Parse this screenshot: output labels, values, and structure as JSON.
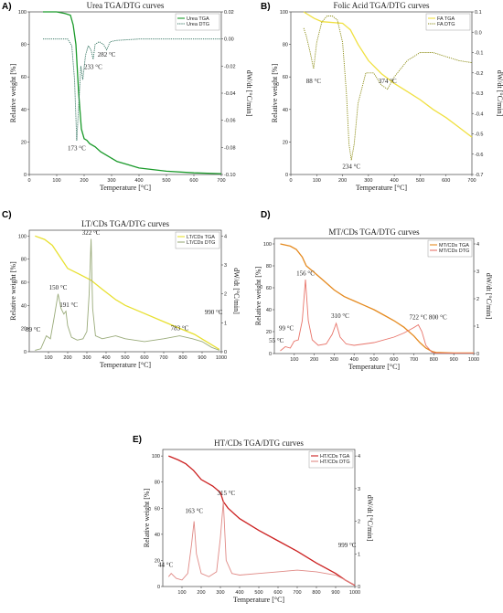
{
  "chart_data": [
    {
      "panel": "A)",
      "type": "line",
      "title": "Urea TGA/DTG curves",
      "xlabel": "Temperature [°C]",
      "ylabel": "Relative weight [%]",
      "y2label": "dW/dt [°C/min]",
      "xlim": [
        0,
        700
      ],
      "ylim": [
        0,
        100
      ],
      "y2lim": [
        -0.1,
        0.02
      ],
      "xticks": [
        0,
        100,
        200,
        300,
        400,
        500,
        600,
        700
      ],
      "yticks": [
        0,
        20,
        40,
        60,
        80,
        100
      ],
      "y2ticks": [
        -0.1,
        -0.08,
        -0.06,
        -0.04,
        -0.02,
        0.0,
        0.02
      ],
      "y2tick_labels": [
        "-0.10",
        "-0.08",
        "-0.06",
        "-0.04",
        "-0.02",
        "0.00",
        "0.02"
      ],
      "legend_position": "top-right",
      "series": [
        {
          "name": "Urea TGA",
          "axis": "left",
          "color": "#1a9a2a",
          "style": "solid",
          "x": [
            50,
            100,
            130,
            150,
            160,
            170,
            175,
            180,
            190,
            200,
            210,
            220,
            240,
            260,
            290,
            320,
            360,
            400,
            500,
            600,
            700
          ],
          "y": [
            100,
            100,
            99,
            98,
            92,
            80,
            65,
            50,
            28,
            22,
            21,
            19,
            17,
            14,
            11,
            8,
            6,
            4,
            2,
            1,
            0.5
          ]
        },
        {
          "name": "Urea DTG",
          "axis": "right",
          "color": "#2a6e5a",
          "style": "dotted",
          "x": [
            50,
            100,
            140,
            155,
            165,
            173,
            180,
            188,
            195,
            205,
            215,
            225,
            233,
            240,
            255,
            270,
            282,
            295,
            320,
            400,
            500,
            600,
            700
          ],
          "y": [
            0.0,
            0.0,
            0.0,
            -0.005,
            -0.03,
            -0.075,
            -0.05,
            -0.02,
            -0.03,
            -0.012,
            -0.005,
            -0.008,
            -0.015,
            -0.004,
            -0.002,
            -0.004,
            -0.008,
            -0.002,
            -0.001,
            0.0,
            0.0,
            0.0,
            0.0
          ]
        }
      ],
      "annotations": [
        {
          "text": "173 °C",
          "x": 173,
          "y2": -0.082
        },
        {
          "text": "233 °C",
          "x": 233,
          "y2": -0.022
        },
        {
          "text": "282 °C",
          "x": 282,
          "y2": -0.013
        }
      ]
    },
    {
      "panel": "B)",
      "type": "line",
      "title": "Folic Acid TGA/DTG curves",
      "xlabel": "Temperature [°C]",
      "ylabel": "Relative weight [%]",
      "y2label": "dW/dt [°C/min]",
      "xlim": [
        0,
        700
      ],
      "ylim": [
        0,
        100
      ],
      "y2lim": [
        -0.7,
        0.1
      ],
      "xticks": [
        0,
        100,
        200,
        300,
        400,
        500,
        600,
        700
      ],
      "yticks": [
        0,
        20,
        40,
        60,
        80,
        100
      ],
      "y2ticks": [
        -0.7,
        -0.6,
        -0.5,
        -0.4,
        -0.3,
        -0.2,
        -0.1,
        0.0,
        0.1
      ],
      "y2tick_labels": [
        "-0.7",
        "-0.6",
        "-0.5",
        "-0.4",
        "-0.3",
        "-0.2",
        "-0.1",
        "0.0",
        "0.1"
      ],
      "legend_position": "top-right",
      "series": [
        {
          "name": "FA TGA",
          "axis": "left",
          "color": "#f0e040",
          "style": "solid",
          "x": [
            50,
            90,
            120,
            200,
            230,
            260,
            300,
            350,
            400,
            450,
            500,
            550,
            600,
            650,
            700
          ],
          "y": [
            100,
            96,
            94,
            93,
            89,
            80,
            70,
            62,
            56,
            51,
            46,
            40,
            35,
            29,
            23
          ]
        },
        {
          "name": "FA DTG",
          "axis": "right",
          "color": "#8a8a10",
          "style": "dotted",
          "x": [
            50,
            60,
            75,
            88,
            100,
            120,
            140,
            160,
            180,
            200,
            215,
            225,
            234,
            245,
            260,
            290,
            320,
            350,
            374,
            400,
            450,
            500,
            550,
            600,
            650,
            700
          ],
          "y": [
            0.02,
            -0.02,
            -0.1,
            -0.18,
            -0.05,
            0.05,
            0.08,
            0.08,
            0.06,
            -0.05,
            -0.3,
            -0.55,
            -0.63,
            -0.55,
            -0.35,
            -0.2,
            -0.2,
            -0.26,
            -0.28,
            -0.22,
            -0.14,
            -0.1,
            -0.1,
            -0.12,
            -0.14,
            -0.15
          ]
        }
      ],
      "annotations": [
        {
          "text": "88 °C",
          "x": 88,
          "y2": -0.25
        },
        {
          "text": "234 °C",
          "x": 234,
          "y2": -0.67
        },
        {
          "text": "374 °C",
          "x": 374,
          "y2": -0.25
        }
      ]
    },
    {
      "panel": "C)",
      "type": "line",
      "title": "LT/CDs TGA/DTG curves",
      "xlabel": "Temperature [°C]",
      "ylabel": "Relative weight [%]",
      "y2label": "dW/dt [°C/min]",
      "xlim": [
        0,
        1000
      ],
      "ylim": [
        0,
        105
      ],
      "y2lim": [
        0,
        4.2
      ],
      "xticks": [
        100,
        200,
        300,
        400,
        500,
        600,
        700,
        800,
        900,
        1000
      ],
      "yticks": [
        0,
        20,
        40,
        60,
        80,
        100
      ],
      "y2ticks": [
        0,
        1,
        2,
        3,
        4
      ],
      "y2tick_labels": [
        "0",
        "1",
        "2",
        "3",
        "4"
      ],
      "legend_position": "top-right",
      "series": [
        {
          "name": "LT/CDs TGA",
          "axis": "left",
          "color": "#e8e030",
          "style": "solid",
          "x": [
            30,
            80,
            120,
            160,
            200,
            260,
            320,
            380,
            450,
            500,
            600,
            700,
            800,
            860,
            900,
            950,
            990
          ],
          "y": [
            100,
            97,
            92,
            82,
            72,
            67,
            62,
            54,
            45,
            40,
            33,
            26,
            19,
            15,
            11,
            6,
            2
          ]
        },
        {
          "name": "LT/CDs DTG",
          "axis": "right",
          "color": "#9aab7a",
          "style": "solid",
          "x": [
            30,
            60,
            89,
            110,
            130,
            150,
            165,
            180,
            191,
            200,
            220,
            250,
            280,
            300,
            312,
            322,
            330,
            345,
            380,
            450,
            500,
            600,
            700,
            783,
            850,
            900,
            950,
            990
          ],
          "y": [
            0.05,
            0.1,
            0.55,
            0.45,
            1.2,
            2.0,
            1.5,
            1.3,
            1.4,
            0.9,
            0.5,
            0.4,
            0.45,
            0.7,
            2.0,
            3.9,
            1.5,
            0.55,
            0.45,
            0.55,
            0.45,
            0.35,
            0.45,
            0.55,
            0.45,
            0.35,
            0.15,
            0.05
          ]
        }
      ],
      "annotations": [
        {
          "text": "89 °C",
          "x": 20,
          "y2": 0.7
        },
        {
          "text": "150 °C",
          "x": 150,
          "y2": 2.15
        },
        {
          "text": "191 °C",
          "x": 205,
          "y2": 1.55
        },
        {
          "text": "322 °C",
          "x": 322,
          "y2": 4.05
        },
        {
          "text": "783 °C",
          "x": 783,
          "y2": 0.75
        },
        {
          "text": "990 °C",
          "x": 960,
          "y2": 1.3,
          "color": "#c8b400"
        }
      ]
    },
    {
      "panel": "D)",
      "type": "line",
      "title": "MT/CDs TGA/DTG curves",
      "xlabel": "Temperature [°C]",
      "ylabel": "Relative weight [%]",
      "y2label": "dW/dt [°C/min]",
      "xlim": [
        0,
        1000
      ],
      "ylim": [
        0,
        105
      ],
      "y2lim": [
        0,
        4.2
      ],
      "xticks": [
        100,
        200,
        300,
        400,
        500,
        600,
        700,
        800,
        900,
        1000
      ],
      "yticks": [
        0,
        20,
        40,
        60,
        80,
        100
      ],
      "y2ticks": [
        0,
        1,
        2,
        3,
        4
      ],
      "y2tick_labels": [
        "0",
        "1",
        "2",
        "3",
        "4"
      ],
      "legend_position": "top-right",
      "series": [
        {
          "name": "MT/CDs TGA",
          "axis": "left",
          "color": "#e58a1f",
          "style": "solid",
          "x": [
            30,
            80,
            110,
            140,
            160,
            200,
            250,
            300,
            350,
            400,
            450,
            500,
            550,
            600,
            650,
            700,
            730,
            760,
            790,
            810,
            900,
            1000
          ],
          "y": [
            100,
            98,
            95,
            88,
            80,
            74,
            66,
            58,
            52,
            48,
            44,
            40,
            35,
            30,
            24,
            16,
            10,
            5,
            2,
            1,
            0.5,
            0.5
          ]
        },
        {
          "name": "MT/CDs DTG",
          "axis": "right",
          "color": "#e8746a",
          "style": "solid",
          "x": [
            30,
            55,
            80,
            99,
            120,
            140,
            156,
            170,
            190,
            220,
            260,
            290,
            310,
            330,
            360,
            400,
            500,
            600,
            650,
            700,
            722,
            740,
            760,
            790,
            810,
            900,
            1000
          ],
          "y": [
            0.1,
            0.25,
            0.2,
            0.45,
            0.5,
            1.2,
            2.7,
            1.2,
            0.5,
            0.3,
            0.35,
            0.7,
            1.1,
            0.6,
            0.35,
            0.3,
            0.4,
            0.6,
            0.75,
            0.95,
            1.05,
            0.8,
            0.3,
            0.05,
            0.02,
            0.02,
            0.02
          ]
        }
      ],
      "annotations": [
        {
          "text": "55 °C",
          "x": 10,
          "y2": 0.4
        },
        {
          "text": "99 °C",
          "x": 60,
          "y2": 0.85
        },
        {
          "text": "156 °C",
          "x": 156,
          "y2": 2.85
        },
        {
          "text": "310 °C",
          "x": 330,
          "y2": 1.3
        },
        {
          "text": "722 °C",
          "x": 722,
          "y2": 1.25
        },
        {
          "text": "800 °C",
          "x": 820,
          "y2": 1.25,
          "color": "#e03030"
        }
      ]
    },
    {
      "panel": "E)",
      "type": "line",
      "title": "HT/CDs TGA/DTG curves",
      "xlabel": "Temperature [°C]",
      "ylabel": "Relative weight [%]",
      "y2label": "dW/dt [°C/min]",
      "xlim": [
        0,
        1000
      ],
      "ylim": [
        0,
        105
      ],
      "y2lim": [
        0,
        4.2
      ],
      "xticks": [
        100,
        200,
        300,
        400,
        500,
        600,
        700,
        800,
        900,
        1000
      ],
      "yticks": [
        0,
        20,
        40,
        60,
        80,
        100
      ],
      "y2ticks": [
        0,
        1,
        2,
        3,
        4
      ],
      "y2tick_labels": [
        "0",
        "1",
        "2",
        "3",
        "4"
      ],
      "legend_position": "top-right",
      "series": [
        {
          "name": "HT/CDs TGA",
          "axis": "left",
          "color": "#cc2020",
          "style": "solid",
          "x": [
            30,
            80,
            120,
            160,
            200,
            260,
            300,
            315,
            340,
            400,
            500,
            600,
            700,
            800,
            900,
            950,
            999
          ],
          "y": [
            100,
            97,
            94,
            89,
            82,
            77,
            72,
            65,
            60,
            52,
            43,
            35,
            27,
            18,
            10,
            5,
            1
          ]
        },
        {
          "name": "HT/CDs DTG",
          "axis": "right",
          "color": "#e08a86",
          "style": "solid",
          "x": [
            30,
            44,
            70,
            100,
            130,
            150,
            163,
            175,
            200,
            240,
            280,
            300,
            315,
            330,
            360,
            400,
            500,
            600,
            700,
            800,
            900,
            950,
            999
          ],
          "y": [
            0.3,
            0.4,
            0.25,
            0.2,
            0.4,
            1.3,
            2.0,
            1.0,
            0.4,
            0.3,
            0.45,
            1.5,
            2.6,
            0.8,
            0.4,
            0.35,
            0.4,
            0.45,
            0.5,
            0.45,
            0.35,
            0.2,
            0.05
          ]
        }
      ],
      "annotations": [
        {
          "text": "44 °C",
          "x": 15,
          "y2": 0.6
        },
        {
          "text": "163 °C",
          "x": 163,
          "y2": 2.25
        },
        {
          "text": "315 °C",
          "x": 330,
          "y2": 2.8
        },
        {
          "text": "999 °C",
          "x": 960,
          "y2": 1.2,
          "color": "#e03030"
        }
      ]
    }
  ]
}
